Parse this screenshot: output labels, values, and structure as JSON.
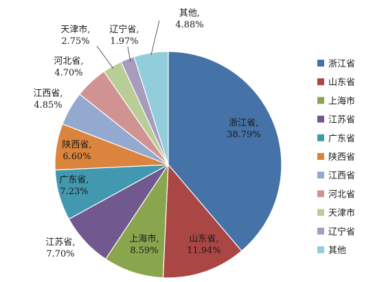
{
  "chart_data": {
    "type": "pie",
    "title": "",
    "start": "12 o'clock",
    "direction": "clockwise",
    "legend": {
      "placement": "right"
    },
    "slices": [
      {
        "label": "浙江省",
        "value": 38.79,
        "value_text": "38.79%",
        "color": "#4572A7"
      },
      {
        "label": "山东省",
        "value": 11.94,
        "value_text": "11.94%",
        "color": "#AA4643"
      },
      {
        "label": "上海市",
        "value": 8.59,
        "value_text": "8.59%",
        "color": "#89A54E"
      },
      {
        "label": "江苏省",
        "value": 7.7,
        "value_text": "7.70%",
        "color": "#71588F"
      },
      {
        "label": "广东省",
        "value": 7.23,
        "value_text": "7.23%",
        "color": "#4198AF"
      },
      {
        "label": "陕西省",
        "value": 6.6,
        "value_text": "6.60%",
        "color": "#DB843D"
      },
      {
        "label": "江西省",
        "value": 4.85,
        "value_text": "4.85%",
        "color": "#93A9CF"
      },
      {
        "label": "河北省",
        "value": 4.7,
        "value_text": "4.70%",
        "color": "#D19392"
      },
      {
        "label": "天津市",
        "value": 2.75,
        "value_text": "2.75%",
        "color": "#B9CD96"
      },
      {
        "label": "辽宁省",
        "value": 1.97,
        "value_text": "1.97%",
        "color": "#A99BBD"
      },
      {
        "label": "其他",
        "value": 4.88,
        "value_text": "4.88%",
        "color": "#92CDDC"
      }
    ]
  }
}
